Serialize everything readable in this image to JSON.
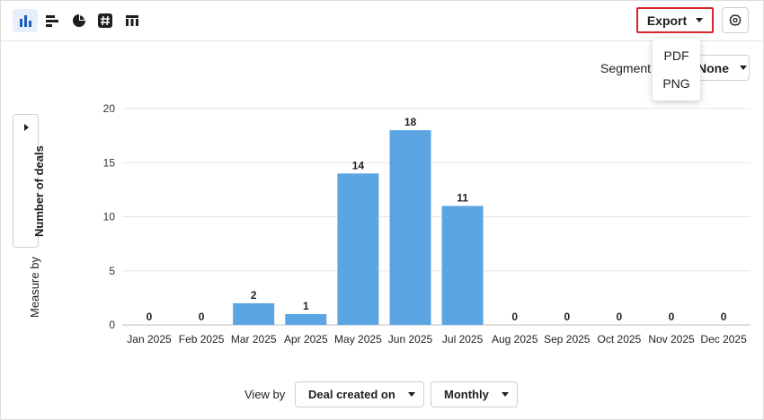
{
  "toolbar": {
    "icons": [
      "column-chart-icon",
      "bar-chart-icon",
      "pie-chart-icon",
      "number-icon",
      "table-icon"
    ],
    "active": "column-chart-icon",
    "export_label": "Export",
    "settings_icon": "gear-icon"
  },
  "export_menu": {
    "items": [
      "PDF",
      "PNG"
    ]
  },
  "segment": {
    "label": "Segment",
    "value": "None"
  },
  "measure": {
    "label": "Measure by",
    "value": "Number of deals"
  },
  "view_by": {
    "label": "View by",
    "field": "Deal created on",
    "interval": "Monthly"
  },
  "colors": {
    "bar": "#5ba5e3",
    "accent": "#1f5fb8",
    "export_border": "#d9262a"
  },
  "chart_data": {
    "type": "bar",
    "categories": [
      "Jan 2025",
      "Feb 2025",
      "Mar 2025",
      "Apr 2025",
      "May 2025",
      "Jun 2025",
      "Jul 2025",
      "Aug 2025",
      "Sep 2025",
      "Oct 2025",
      "Nov 2025",
      "Dec 2025"
    ],
    "values": [
      0,
      0,
      2,
      1,
      14,
      18,
      11,
      0,
      0,
      0,
      0,
      0
    ],
    "ylim": [
      0,
      20
    ],
    "yticks": [
      0,
      5,
      10,
      15,
      20
    ],
    "grid": true,
    "data_labels": true
  }
}
